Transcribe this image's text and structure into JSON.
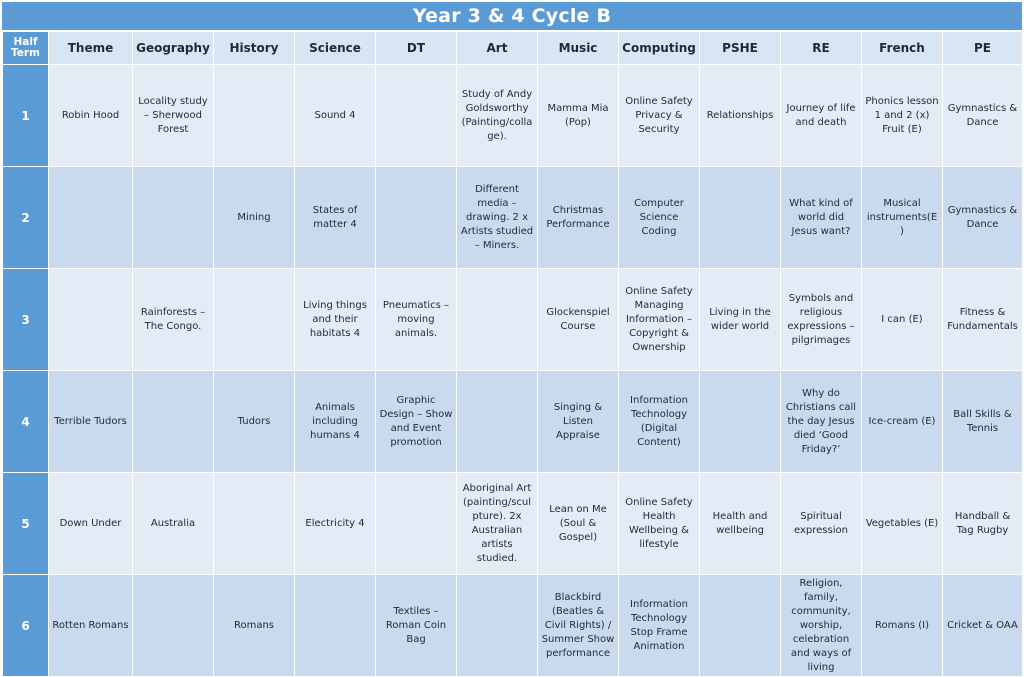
{
  "title": "Year 3 & 4 Cycle B",
  "headers": [
    "Half Term",
    "Theme",
    "Geography",
    "History",
    "Science",
    "DT",
    "Art",
    "Music",
    "Computing",
    "PSHE",
    "RE",
    "French",
    "PE"
  ],
  "rows": [
    [
      "1",
      "Robin Hood",
      "Locality study – Sherwood Forest",
      "",
      "Sound 4",
      "",
      "Study of Andy Goldsworthy (Painting/collage).",
      "Mamma Mia (Pop)",
      "Online Safety Privacy & Security",
      "Relationships",
      "Journey of life and death",
      "Phonics lesson 1 and 2 (x) Fruit (E)",
      "Gymnastics & Dance"
    ],
    [
      "2",
      "",
      "",
      "Mining",
      "States of matter 4",
      "",
      "Different media – drawing. 2 x Artists studied – Miners.",
      "Christmas Performance",
      "Computer Science Coding",
      "",
      "What kind of world did Jesus want?",
      "Musical instruments(E)",
      "Gymnastics & Dance"
    ],
    [
      "3",
      "",
      "Rainforests – The Congo.",
      "",
      "Living things and their habitats 4",
      "Pneumatics – moving animals.",
      "",
      "Glockenspiel Course",
      "Online Safety Managing Information – Copyright & Ownership",
      "Living in the wider world",
      "Symbols and religious expressions – pilgrimages",
      "I can (E)",
      "Fitness & Fundamentals"
    ],
    [
      "4",
      "Terrible Tudors",
      "",
      "Tudors",
      "Animals including humans 4",
      "Graphic Design – Show and Event promotion",
      "",
      "Singing & Listen Appraise",
      "Information Technology (Digital Content)",
      "",
      "Why do Christians call the day Jesus died ‘Good Friday?’",
      "Ice-cream (E)",
      "Ball Skills & Tennis"
    ],
    [
      "5",
      "Down Under",
      "Australia",
      "",
      "Electricity 4",
      "",
      "Aboriginal Art (painting/sculpture). 2x Australian artists studied.",
      "Lean on Me (Soul & Gospel)",
      "Online Safety Health Wellbeing & lifestyle",
      "Health and wellbeing",
      "Spiritual expression",
      "Vegetables (E)",
      "Handball & Tag Rugby"
    ],
    [
      "6",
      "Rotten Romans",
      "",
      "Romans",
      "",
      "Textiles – Roman Coin Bag",
      "",
      "Blackbird (Beatles & Civil Rights) / Summer Show performance",
      "Information Technology Stop Frame Animation",
      "",
      "Religion, family, community, worship, celebration and ways of living",
      "Romans (I)",
      "Cricket & OAA"
    ]
  ]
}
